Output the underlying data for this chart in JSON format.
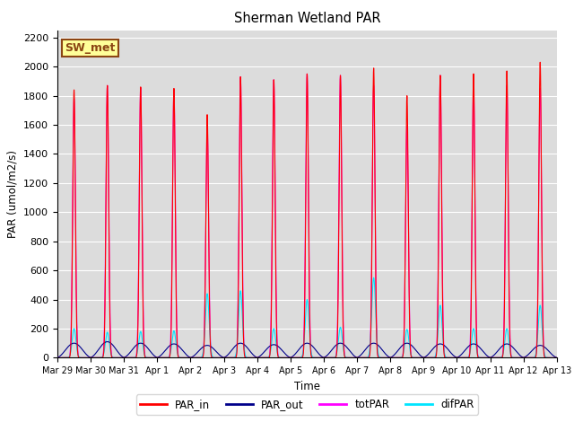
{
  "title": "Sherman Wetland PAR",
  "ylabel": "PAR (umol/m2/s)",
  "xlabel": "Time",
  "ylim": [
    0,
    2250
  ],
  "bg_color": "#dcdcdc",
  "annotation_text": "SW_met",
  "annotation_bg": "#ffff99",
  "annotation_border": "#8b4513",
  "colors": {
    "PAR_in": "#ff0000",
    "PAR_out": "#00008b",
    "totPAR": "#ff00ff",
    "difPAR": "#00e5ff"
  },
  "num_days": 15,
  "peaks": {
    "PAR_in": [
      1840,
      1870,
      1860,
      1850,
      1670,
      1930,
      1910,
      1950,
      1940,
      1990,
      1800,
      1940,
      1950,
      1970,
      2030
    ],
    "totPAR": [
      1780,
      1870,
      1855,
      1845,
      1590,
      1930,
      1910,
      1950,
      1940,
      1870,
      1590,
      1940,
      1870,
      1870,
      1850
    ],
    "PAR_out": [
      100,
      110,
      100,
      95,
      85,
      100,
      90,
      100,
      100,
      100,
      100,
      95,
      95,
      95,
      85
    ],
    "difPAR": [
      200,
      175,
      180,
      185,
      440,
      460,
      200,
      400,
      210,
      550,
      195,
      360,
      200,
      200,
      360
    ]
  },
  "x_tick_labels": [
    "Mar 29",
    "Mar 30",
    "Mar 31",
    "Apr 1",
    "Apr 2",
    "Apr 3",
    "Apr 4",
    "Apr 5",
    "Apr 6",
    "Apr 7",
    "Apr 8",
    "Apr 9",
    "Apr 10",
    "Apr 11",
    "Apr 12",
    "Apr 13"
  ],
  "x_tick_positions": [
    0,
    1,
    2,
    3,
    4,
    5,
    6,
    7,
    8,
    9,
    10,
    11,
    12,
    13,
    14,
    15
  ]
}
